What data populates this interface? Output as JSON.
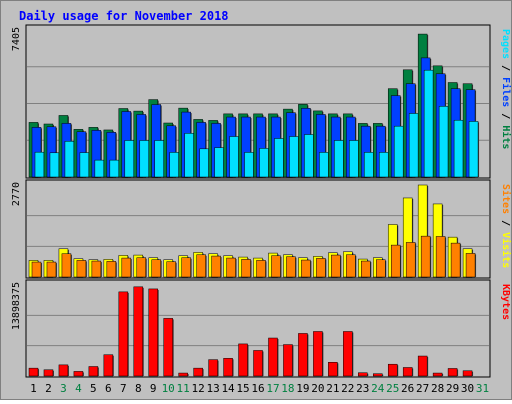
{
  "chart_data": {
    "type": "bar",
    "title": "Daily usage for November 2018",
    "days": [
      "1",
      "2",
      "3",
      "4",
      "5",
      "6",
      "7",
      "8",
      "9",
      "10",
      "11",
      "12",
      "13",
      "14",
      "15",
      "16",
      "17",
      "18",
      "19",
      "20",
      "21",
      "22",
      "23",
      "24",
      "25",
      "26",
      "27",
      "28",
      "29",
      "30",
      "31"
    ],
    "weekend_days": [
      "3",
      "4",
      "10",
      "11",
      "17",
      "18",
      "24",
      "25",
      "31"
    ],
    "panels": [
      {
        "id": "hits-files-pages",
        "max_label": "7405",
        "ylim": [
          0,
          7405
        ],
        "series": [
          {
            "name": "Hits",
            "color": "#008040",
            "values": [
              2750,
              2670,
              3100,
              2400,
              2500,
              2370,
              3450,
              3320,
              3900,
              2720,
              3470,
              2900,
              2850,
              3180,
              3180,
              3180,
              3180,
              3420,
              3660,
              3330,
              3180,
              3180,
              2700,
              2700,
              4450,
              5400,
              7200,
              5600,
              4760,
              4700,
              0
            ]
          },
          {
            "name": "Files",
            "color": "#0040FF",
            "values": [
              2500,
              2530,
              2700,
              2280,
              2350,
              2250,
              3300,
              3150,
              3650,
              2580,
              3270,
              2750,
              2700,
              3020,
              3020,
              3020,
              3020,
              3240,
              3460,
              3150,
              3020,
              3020,
              2560,
              2560,
              4100,
              4700,
              6000,
              5200,
              4450,
              4400,
              0
            ]
          },
          {
            "name": "Pages",
            "color": "#00E0FF",
            "values": [
              1250,
              1220,
              1800,
              1230,
              850,
              850,
              1840,
              1840,
              1840,
              1240,
              2200,
              1420,
              1480,
              2040,
              1240,
              1440,
              1940,
              2040,
              2140,
              1240,
              1840,
              1840,
              1240,
              1240,
              2560,
              3200,
              5380,
              3560,
              2860,
              2800,
              0
            ]
          }
        ]
      },
      {
        "id": "visits-sites",
        "max_label": "2770",
        "ylim": [
          0,
          2770
        ],
        "series": [
          {
            "name": "Visits",
            "color": "#FFFF00",
            "values": [
              500,
              500,
              850,
              550,
              520,
              530,
              650,
              660,
              580,
              520,
              640,
              740,
              700,
              640,
              600,
              570,
              720,
              670,
              580,
              620,
              730,
              760,
              540,
              580,
              1580,
              2380,
              2770,
              2200,
              1200,
              850,
              0
            ]
          },
          {
            "name": "Sites",
            "color": "#FF8000",
            "values": [
              450,
              450,
              700,
              500,
              480,
              470,
              570,
              580,
              520,
              460,
              580,
              670,
              630,
              570,
              530,
              500,
              640,
              610,
              510,
              560,
              660,
              670,
              480,
              520,
              960,
              1040,
              1230,
              1220,
              1020,
              710,
              0
            ]
          }
        ]
      },
      {
        "id": "kbytes",
        "max_label": "13898375",
        "ylim": [
          0,
          13898375
        ],
        "series": [
          {
            "name": "KBytes",
            "color": "#FF0000",
            "values": [
              1200000,
              950000,
              1700000,
              700000,
              1450000,
              3250000,
              12850000,
              13620000,
              13300000,
              8800000,
              450000,
              1200000,
              2500000,
              2700000,
              4900000,
              3900000,
              5800000,
              4800000,
              6500000,
              6800000,
              2100000,
              6800000,
              500000,
              350000,
              1800000,
              1300000,
              3050000,
              450000,
              1150000,
              800000,
              0
            ]
          }
        ]
      }
    ],
    "axis_label_segments": [
      {
        "text": "Pages",
        "color": "#00E0FF"
      },
      {
        "text": " / ",
        "color": "#000000"
      },
      {
        "text": "Files",
        "color": "#0040FF"
      },
      {
        "text": " / ",
        "color": "#000000"
      },
      {
        "text": "Hits",
        "color": "#008040"
      }
    ],
    "axis_label_segments_2": [
      {
        "text": "Sites",
        "color": "#FF8000"
      },
      {
        "text": " / ",
        "color": "#000000"
      },
      {
        "text": "Visits",
        "color": "#FFFF00"
      }
    ],
    "axis_label_segments_3": [
      {
        "text": "KBytes",
        "color": "#FF0000"
      }
    ],
    "colors": {
      "background": "#C0C0C0",
      "title": "#0000FF",
      "weekday": "#000000",
      "weekend": "#008040",
      "grid": "#808080"
    }
  }
}
